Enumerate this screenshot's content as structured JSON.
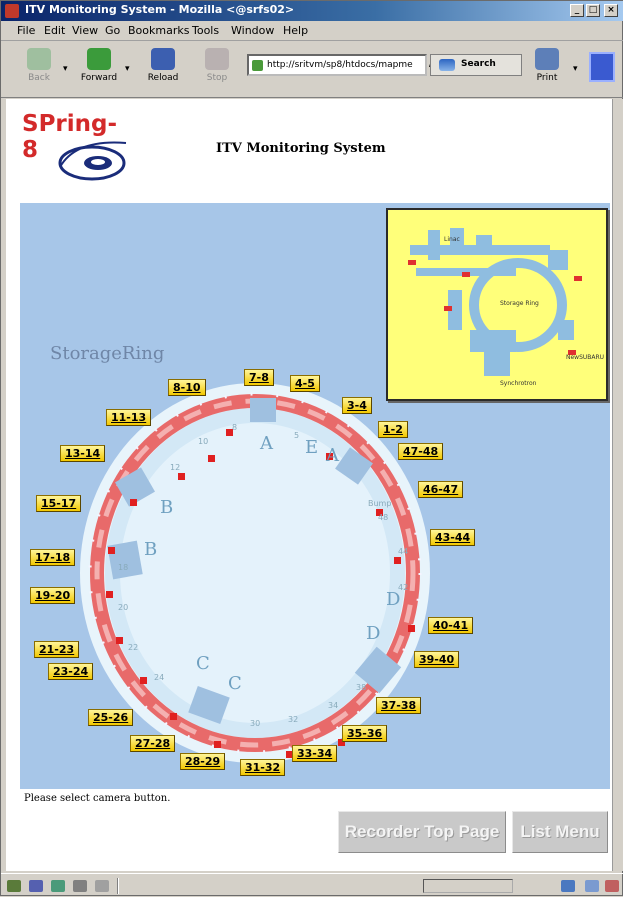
{
  "window": {
    "title": "ITV Monitoring System - Mozilla <@srfs02>",
    "buttons": {
      "minimize": "_",
      "maximize": "□",
      "close": "×"
    }
  },
  "menu": [
    "File",
    "Edit",
    "View",
    "Go",
    "Bookmarks",
    "Tools",
    "Window",
    "Help"
  ],
  "toolbar": {
    "back": "Back",
    "forward": "Forward",
    "reload": "Reload",
    "stop": "Stop",
    "url": "http://sritvm/sp8/htdocs/mapme",
    "search": "Search",
    "print": "Print"
  },
  "page": {
    "logo_text": "SPring-8",
    "title": "ITV Monitoring System",
    "ring_label": "StorageRing",
    "status_text": "Please select camera button.",
    "recorder_button": "Recorder Top Page",
    "list_button": "List Menu"
  },
  "inset": {
    "labels": [
      "Linac",
      "Storage Ring",
      "Synchrotron",
      "NewSUBARU"
    ]
  },
  "cameras": [
    "7-8",
    "4-5",
    "3-4",
    "1-2",
    "47-48",
    "46-47",
    "43-44",
    "40-41",
    "39-40",
    "37-38",
    "35-36",
    "33-34",
    "31-32",
    "28-29",
    "27-28",
    "25-26",
    "23-24",
    "21-23",
    "19-20",
    "17-18",
    "15-17",
    "13-14",
    "11-13",
    "8-10"
  ],
  "ring_marks": {
    "section_letters": [
      "A",
      "E",
      "A",
      "B",
      "B",
      "C",
      "C",
      "D",
      "D"
    ],
    "cell_numbers": [
      "8",
      "10",
      "12",
      "18",
      "20",
      "22",
      "24",
      "30",
      "32",
      "34",
      "38",
      "42",
      "44",
      "48",
      "5"
    ],
    "bump_label": "Bump"
  }
}
